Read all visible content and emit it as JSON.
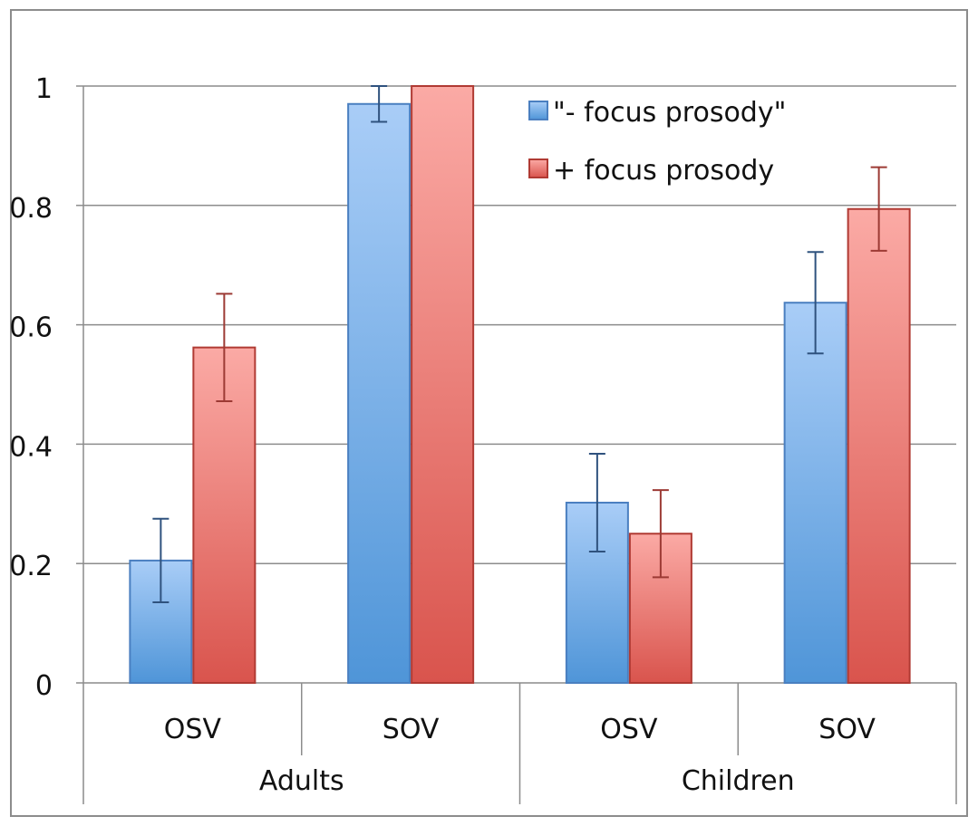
{
  "chart_data": {
    "type": "bar",
    "title": "",
    "xlabel": "",
    "ylabel": "",
    "ylim": [
      0,
      1
    ],
    "yticks": [
      0,
      0.2,
      0.4,
      0.6,
      0.8,
      1
    ],
    "ytick_labels": [
      "0",
      "0.2",
      "0.4",
      "0.6",
      "0.8",
      "1"
    ],
    "categories": [
      "OSV",
      "SOV",
      "OSV",
      "SOV"
    ],
    "groups": [
      {
        "label": "Adults",
        "categories": [
          "OSV",
          "SOV"
        ]
      },
      {
        "label": "Children",
        "categories": [
          "OSV",
          "SOV"
        ]
      }
    ],
    "series": [
      {
        "name": "\"- focus prosody\"",
        "color": "#5b9bd5",
        "values": [
          0.205,
          0.97,
          0.302,
          0.637
        ],
        "errors": [
          0.07,
          0.03,
          0.082,
          0.085
        ]
      },
      {
        "name": "+ focus prosody",
        "color": "#e06666",
        "values": [
          0.562,
          1.0,
          0.25,
          0.794
        ],
        "errors": [
          0.09,
          0.0,
          0.073,
          0.07
        ]
      }
    ],
    "grid": true,
    "legend_position": "top-right"
  }
}
